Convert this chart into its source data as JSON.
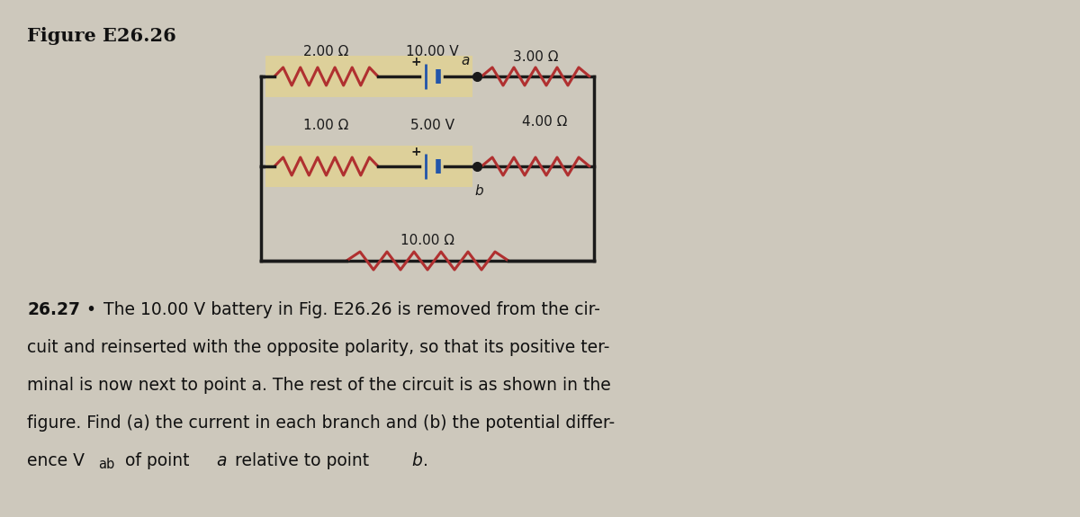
{
  "title": "Figure E26.26",
  "bg_color": "#cdc8bc",
  "wire_color": "#1a1a1a",
  "resistor_color": "#b03030",
  "battery_color": "#2255aa",
  "highlight_color": "#ddd09a",
  "label_color": "#111111",
  "top_resistor_label": "2.00 Ω",
  "top_battery_label": "10.00 V",
  "mid_resistor_label": "1.00 Ω",
  "mid_battery_label": "5.00 V",
  "right_top_resistor": "3.00 Ω",
  "right_mid_resistor": "4.00 Ω",
  "bottom_resistor": "10.00 Ω",
  "point_a": "a",
  "point_b": "b",
  "problem_number": "26.27",
  "prob_line1": "The 10.00 V battery in Fig. E26.26 is removed from the cir-",
  "prob_line2": "cuit and reinserted with the opposite polarity, so that its positive ter-",
  "prob_line3": "minal is now next to point a. The rest of the circuit is as shown in the",
  "prob_line4": "figure. Find (a) the current in each branch and (b) the potential differ-",
  "prob_line5": "ence V",
  "prob_line5b": "ab",
  "prob_line5c": " of point a relative to point b."
}
